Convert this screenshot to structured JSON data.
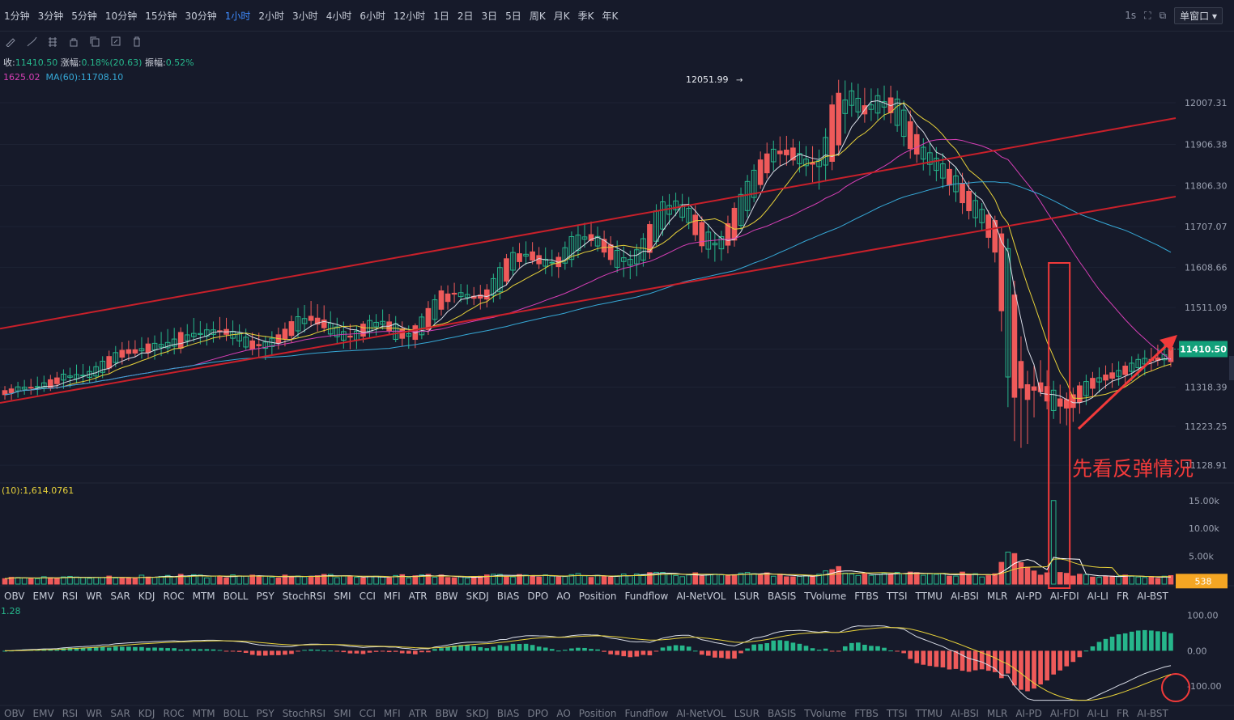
{
  "toolbar": {
    "timeframes": [
      "1分钟",
      "3分钟",
      "5分钟",
      "10分钟",
      "15分钟",
      "30分钟",
      "1小时",
      "2小时",
      "3小时",
      "4小时",
      "6小时",
      "12小时",
      "1日",
      "2日",
      "3日",
      "5日",
      "周K",
      "月K",
      "季K",
      "年K"
    ],
    "active_timeframe": "1小时",
    "interval_label": "1s",
    "window_mode": "单窗口"
  },
  "drawing_tools": [
    "pencil-icon",
    "brush-icon",
    "pattern-icon",
    "lock-icon",
    "copy-icon",
    "edit-icon",
    "trash-icon"
  ],
  "info": {
    "close_label": "收:",
    "close_value": "11410.50",
    "change_label": "涨幅:",
    "change_value": "0.18%(20.63)",
    "amplitude_label": "振幅:",
    "amplitude_value": "0.52%",
    "ma_line_a": "1625.02",
    "ma_line_b": "MA(60):11708.10",
    "volume_ma": "(10):1,614.0761",
    "osc_value": "1.28"
  },
  "indicator_tabs": [
    "OBV",
    "EMV",
    "RSI",
    "WR",
    "SAR",
    "KDJ",
    "ROC",
    "MTM",
    "BOLL",
    "PSY",
    "StochRSI",
    "SMI",
    "CCI",
    "MFI",
    "ATR",
    "BBW",
    "SKDJ",
    "BIAS",
    "DPO",
    "AO",
    "Position",
    "Fundflow",
    "AI-NetVOL",
    "LSUR",
    "BASIS",
    "TVolume",
    "FTBS",
    "TTSI",
    "TTMU",
    "AI-BSI",
    "MLR",
    "AI-PD",
    "AI-FDI",
    "AI-LI",
    "FR",
    "AI-BST"
  ],
  "annotation": "先看反弹情况",
  "colors": {
    "background": "#161a2a",
    "up": "#26b68b",
    "down": "#ef5a5a",
    "ma5": "#d8dce6",
    "ma10": "#e8d23a",
    "ma30": "#d63fb6",
    "ma60": "#36a8d6",
    "channel": "#c8202a",
    "annotation": "#f23a3a",
    "price_badge": "#13a07a",
    "volume_badge": "#f5a623"
  },
  "chart_data": [
    {
      "type": "candlestick",
      "panel": "price",
      "y_ticks": [
        "12007.31",
        "11906.38",
        "11806.30",
        "11707.07",
        "11608.66",
        "11511.09",
        "11410.50",
        "11318.39",
        "11223.25",
        "11128.91"
      ],
      "ylim": [
        11090,
        12070
      ],
      "last_price": "11410.50",
      "high_marker": "12051.99",
      "ohlc_approx": [
        [
          11300,
          11320,
          11290,
          11310
        ],
        [
          11310,
          11330,
          11300,
          11320
        ],
        [
          11320,
          11335,
          11305,
          11315
        ],
        [
          11315,
          11340,
          11310,
          11335
        ],
        [
          11335,
          11360,
          11320,
          11350
        ],
        [
          11350,
          11370,
          11330,
          11340
        ],
        [
          11340,
          11365,
          11330,
          11360
        ],
        [
          11360,
          11400,
          11350,
          11390
        ],
        [
          11390,
          11420,
          11380,
          11410
        ],
        [
          11410,
          11430,
          11395,
          11400
        ],
        [
          11400,
          11440,
          11390,
          11430
        ],
        [
          11430,
          11450,
          11400,
          11410
        ],
        [
          11410,
          11460,
          11405,
          11450
        ],
        [
          11450,
          11480,
          11430,
          11440
        ],
        [
          11440,
          11470,
          11420,
          11460
        ],
        [
          11460,
          11490,
          11440,
          11450
        ],
        [
          11450,
          11470,
          11420,
          11430
        ],
        [
          11430,
          11450,
          11400,
          11410
        ],
        [
          11410,
          11440,
          11390,
          11430
        ],
        [
          11430,
          11460,
          11420,
          11450
        ],
        [
          11450,
          11500,
          11440,
          11490
        ],
        [
          11490,
          11520,
          11470,
          11480
        ],
        [
          11480,
          11510,
          11450,
          11460
        ],
        [
          11460,
          11480,
          11420,
          11430
        ],
        [
          11430,
          11460,
          11410,
          11450
        ],
        [
          11450,
          11490,
          11440,
          11480
        ],
        [
          11480,
          11500,
          11460,
          11470
        ],
        [
          11470,
          11480,
          11420,
          11430
        ],
        [
          11430,
          11460,
          11415,
          11455
        ],
        [
          11455,
          11520,
          11450,
          11510
        ],
        [
          11510,
          11560,
          11500,
          11550
        ],
        [
          11550,
          11570,
          11530,
          11540
        ],
        [
          11540,
          11560,
          11520,
          11530
        ],
        [
          11530,
          11560,
          11510,
          11550
        ],
        [
          11550,
          11620,
          11540,
          11610
        ],
        [
          11610,
          11660,
          11600,
          11650
        ],
        [
          11650,
          11670,
          11620,
          11630
        ],
        [
          11630,
          11650,
          11600,
          11610
        ],
        [
          11610,
          11640,
          11590,
          11630
        ],
        [
          11630,
          11700,
          11620,
          11690
        ],
        [
          11690,
          11720,
          11670,
          11680
        ],
        [
          11680,
          11700,
          11640,
          11650
        ],
        [
          11650,
          11670,
          11600,
          11610
        ],
        [
          11610,
          11640,
          11580,
          11630
        ],
        [
          11630,
          11700,
          11620,
          11690
        ],
        [
          11690,
          11780,
          11680,
          11770
        ],
        [
          11770,
          11790,
          11740,
          11750
        ],
        [
          11750,
          11770,
          11700,
          11710
        ],
        [
          11710,
          11720,
          11640,
          11650
        ],
        [
          11650,
          11680,
          11620,
          11670
        ],
        [
          11670,
          11760,
          11660,
          11750
        ],
        [
          11750,
          11830,
          11740,
          11820
        ],
        [
          11820,
          11900,
          11810,
          11880
        ],
        [
          11880,
          11920,
          11860,
          11900
        ],
        [
          11900,
          11920,
          11860,
          11870
        ],
        [
          11870,
          11900,
          11830,
          11850
        ],
        [
          11850,
          11890,
          11800,
          11870
        ],
        [
          11870,
          12060,
          11860,
          12040
        ],
        [
          12040,
          12052,
          11980,
          12000
        ],
        [
          12000,
          12040,
          11960,
          11980
        ],
        [
          11980,
          12040,
          11970,
          12030
        ],
        [
          12030,
          12050,
          11960,
          11970
        ],
        [
          11970,
          11990,
          11880,
          11900
        ],
        [
          11900,
          11920,
          11850,
          11870
        ],
        [
          11870,
          11890,
          11820,
          11840
        ],
        [
          11840,
          11860,
          11780,
          11800
        ],
        [
          11800,
          11820,
          11730,
          11750
        ],
        [
          11750,
          11760,
          11700,
          11720
        ],
        [
          11720,
          11730,
          11620,
          11640
        ],
        [
          11640,
          11660,
          11200,
          11280
        ],
        [
          11280,
          11350,
          11160,
          11330
        ],
        [
          11330,
          11380,
          11300,
          11310
        ],
        [
          11310,
          11330,
          11240,
          11260
        ],
        [
          11260,
          11300,
          11230,
          11290
        ],
        [
          11290,
          11340,
          11270,
          11330
        ],
        [
          11330,
          11360,
          11310,
          11340
        ],
        [
          11340,
          11370,
          11320,
          11350
        ],
        [
          11350,
          11380,
          11330,
          11370
        ],
        [
          11370,
          11400,
          11350,
          11390
        ],
        [
          11390,
          11420,
          11370,
          11380
        ],
        [
          11380,
          11420,
          11370,
          11410
        ]
      ]
    },
    {
      "type": "bar",
      "panel": "volume",
      "y_ticks": [
        "15.00k",
        "10.00k",
        "5.00k"
      ],
      "ylim": [
        0,
        17000
      ],
      "last_volume": "538"
    },
    {
      "type": "bar",
      "panel": "oscillator",
      "y_ticks": [
        "100.00",
        "0.00",
        "-100.00"
      ],
      "ylim": [
        -150,
        120
      ]
    }
  ]
}
